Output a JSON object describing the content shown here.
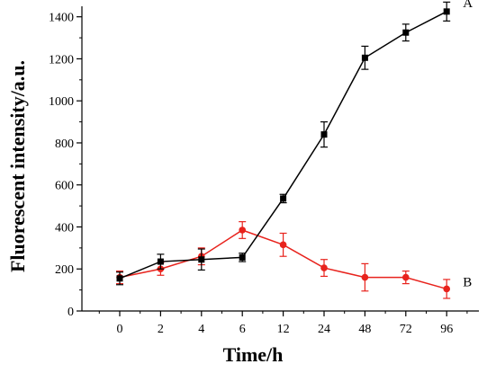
{
  "chart_data": {
    "type": "line",
    "xlabel": "Time/h",
    "ylabel": "Fluorescent intensity/a.u.",
    "categories": [
      "0",
      "2",
      "4",
      "6",
      "12",
      "24",
      "48",
      "72",
      "96"
    ],
    "ylim": [
      0,
      1450
    ],
    "yticks": [
      0,
      200,
      400,
      600,
      800,
      1000,
      1200,
      1400
    ],
    "grid": false,
    "legend": "none",
    "series": [
      {
        "name": "A",
        "color": "#000000",
        "marker": "square",
        "values": [
          155,
          235,
          245,
          255,
          535,
          840,
          1205,
          1325,
          1425
        ],
        "errors": [
          30,
          35,
          50,
          20,
          20,
          60,
          55,
          40,
          45
        ]
      },
      {
        "name": "B",
        "color": "#e8231d",
        "marker": "circle",
        "values": [
          160,
          200,
          260,
          385,
          315,
          205,
          160,
          160,
          105
        ],
        "errors": [
          30,
          30,
          40,
          40,
          55,
          40,
          65,
          30,
          45
        ]
      }
    ]
  }
}
